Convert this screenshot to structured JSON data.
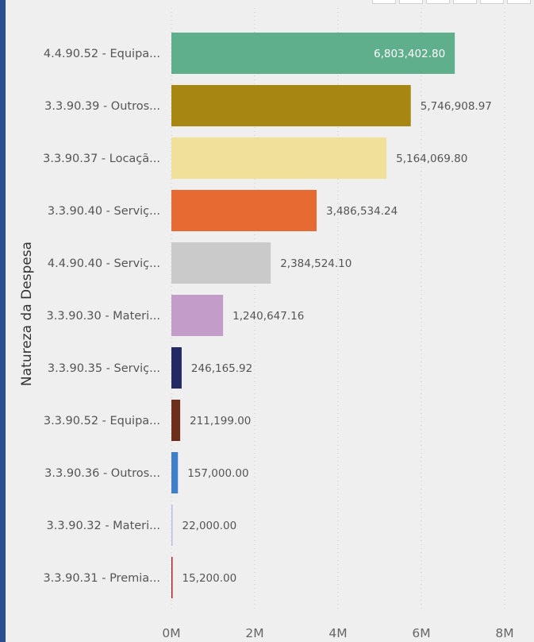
{
  "chart_data": {
    "type": "bar",
    "orientation": "horizontal",
    "ylabel": "Natureza da Despesa",
    "xlabel": "",
    "xlim": [
      0,
      8000000
    ],
    "xticks": [
      0,
      2000000,
      4000000,
      6000000,
      8000000
    ],
    "xtick_labels": [
      "0M",
      "2M",
      "4M",
      "6M",
      "8M"
    ],
    "grid": true,
    "categories": [
      "4.4.90.52 - Equipa...",
      "3.3.90.39 - Outros...",
      "3.3.90.37 - Locaçã...",
      "3.3.90.40 - Serviç...",
      "4.4.90.40 - Serviç...",
      "3.3.90.30 - Materi...",
      "3.3.90.35 - Serviç...",
      "3.3.90.52 - Equipa...",
      "3.3.90.36 - Outros...",
      "3.3.90.32 - Materi...",
      "3.3.90.31 - Premia..."
    ],
    "values": [
      6803402.8,
      5746908.97,
      5164069.8,
      3486534.24,
      2384524.1,
      1240647.16,
      246165.92,
      211199.0,
      157000.0,
      22000.0,
      15200.0
    ],
    "value_labels": [
      "6,803,402.80",
      "5,746,908.97",
      "5,164,069.80",
      "3,486,534.24",
      "2,384,524.10",
      "1,240,647.16",
      "246,165.92",
      "211,199.00",
      "157,000.00",
      "22,000.00",
      "15,200.00"
    ],
    "colors": [
      "#5fae8c",
      "#a78712",
      "#f0e09a",
      "#e86a33",
      "#cacaca",
      "#c39cc9",
      "#232a63",
      "#6d2f1a",
      "#3f7fca",
      "#b7bde6",
      "#a3242c"
    ]
  }
}
